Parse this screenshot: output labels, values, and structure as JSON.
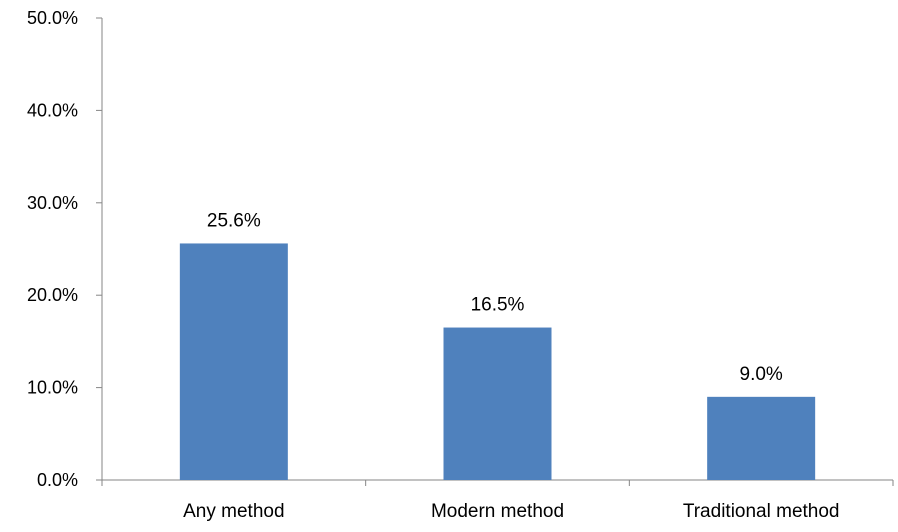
{
  "chart_data": {
    "type": "bar",
    "categories": [
      "Any method",
      "Modern method",
      "Traditional method"
    ],
    "values": [
      25.6,
      16.5,
      9.0
    ],
    "data_labels": [
      "25.6%",
      "16.5%",
      "9.0%"
    ],
    "title": "",
    "xlabel": "",
    "ylabel": "",
    "ylim": [
      0,
      50
    ],
    "yticks": [
      0,
      10,
      20,
      30,
      40,
      50
    ],
    "ytick_labels": [
      "0.0%",
      "10.0%",
      "20.0%",
      "30.0%",
      "40.0%",
      "50.0%"
    ],
    "grid": false,
    "legend": "none",
    "colors": {
      "bar": "#4f81bd",
      "axis": "#868686",
      "text": "#000000"
    }
  }
}
